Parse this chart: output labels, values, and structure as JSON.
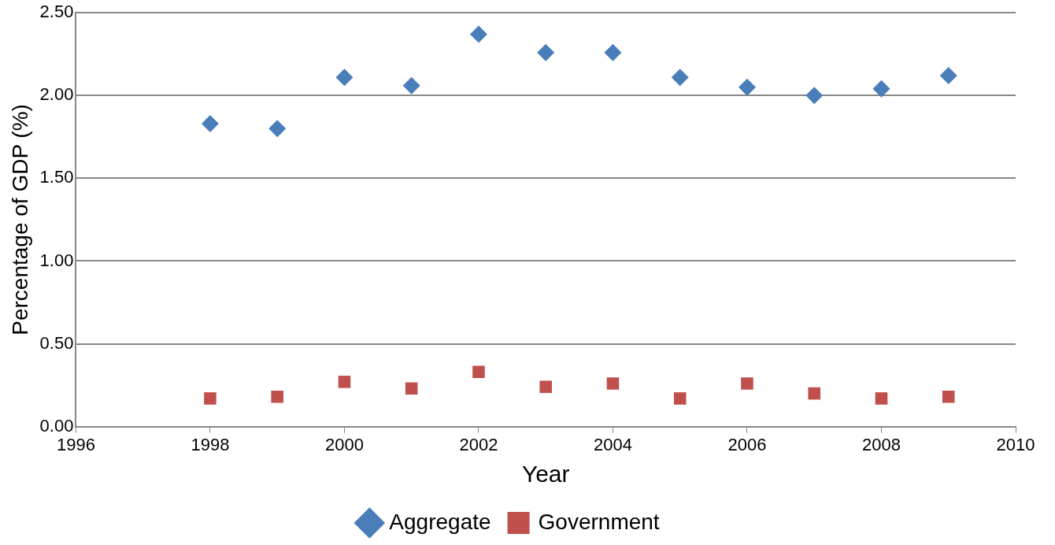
{
  "chart_data": {
    "type": "scatter",
    "xlabel": "Year",
    "ylabel": "Percentage of GDP (%)",
    "x": [
      1998,
      1999,
      2000,
      2001,
      2002,
      2003,
      2004,
      2005,
      2006,
      2007,
      2008,
      2009
    ],
    "series": [
      {
        "name": "Aggregate",
        "color": "#4a7ebb",
        "marker": "diamond",
        "values": [
          1.83,
          1.8,
          2.11,
          2.06,
          2.37,
          2.26,
          2.26,
          2.11,
          2.05,
          2.0,
          2.04,
          2.12
        ]
      },
      {
        "name": "Government",
        "color": "#c0504d",
        "marker": "square",
        "values": [
          0.17,
          0.18,
          0.27,
          0.23,
          0.33,
          0.24,
          0.26,
          0.17,
          0.26,
          0.2,
          0.17,
          0.18
        ]
      }
    ],
    "xlim": [
      1996,
      2010
    ],
    "xticks": [
      1996,
      1998,
      2000,
      2002,
      2004,
      2006,
      2008,
      2010
    ],
    "ylim": [
      0,
      2.5
    ],
    "yticks": [
      {
        "value": 0,
        "label": "0.00"
      },
      {
        "value": 0.5,
        "label": "0.50"
      },
      {
        "value": 1,
        "label": "1.00"
      },
      {
        "value": 1.5,
        "label": "1.50"
      },
      {
        "value": 2,
        "label": "2.00"
      },
      {
        "value": 2.5,
        "label": "2.50"
      }
    ],
    "grid": "y",
    "legend": "bottom"
  }
}
